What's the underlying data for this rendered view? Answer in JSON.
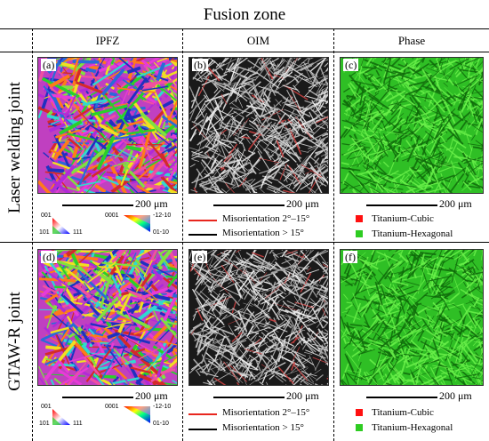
{
  "title": "Fusion zone",
  "columns": [
    "IPFZ",
    "OIM",
    "Phase"
  ],
  "rows": [
    "Laser welding joint",
    "GTAW-R joint"
  ],
  "panels": {
    "a": "(a)",
    "b": "(b)",
    "c": "(c)",
    "d": "(d)",
    "e": "(e)",
    "f": "(f)"
  },
  "scale_bar": "200 μm",
  "ipf_key": {
    "cubic": {
      "top": "001",
      "bottom_left": "101",
      "bottom_right": "111"
    },
    "hex": {
      "top_left": "0001",
      "top_right": "-12-10",
      "bottom_right": "01-10"
    }
  },
  "oim_legend": [
    {
      "label": "Misorientation 2°–15°",
      "color": "#e8261e"
    },
    {
      "label": "Misorientation  > 15°",
      "color": "#000000"
    }
  ],
  "phase_legend": [
    {
      "label": "Titanium-Cubic",
      "color": "#ff1010"
    },
    {
      "label": "Titanium-Hexagonal",
      "color": "#2ecc22"
    }
  ]
}
